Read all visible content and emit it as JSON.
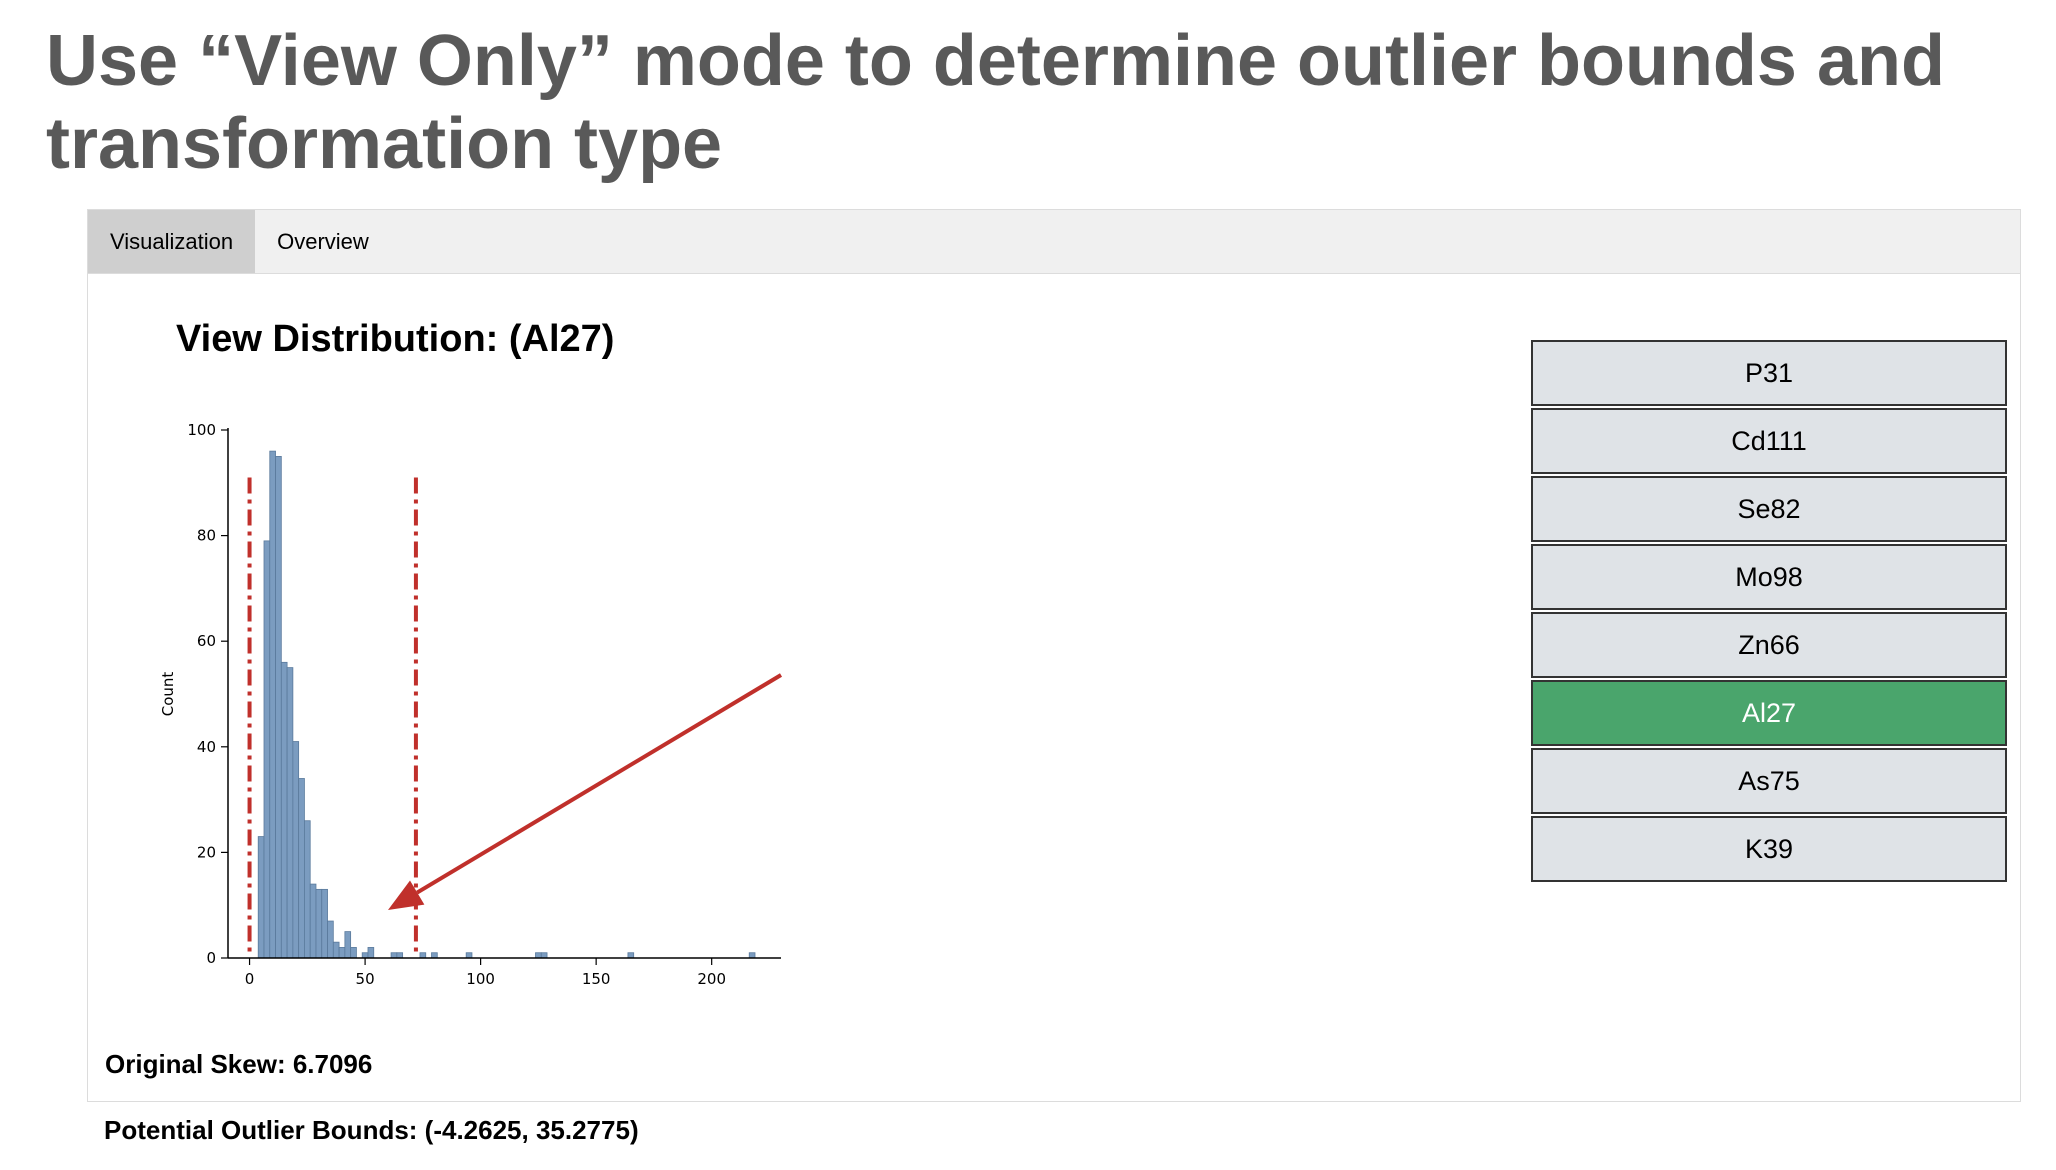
{
  "slide": {
    "title": "Use “View Only” mode to determine outlier bounds and transformation type"
  },
  "tabs": [
    {
      "label": "Visualization",
      "active": true
    },
    {
      "label": "Overview",
      "active": false
    }
  ],
  "chart_title": "View Distribution: (Al27)",
  "chart_data": {
    "type": "bar",
    "title": "View Distribution: (Al27)",
    "xlabel": "",
    "ylabel": "Count",
    "xlim": [
      -5,
      230
    ],
    "ylim": [
      0,
      100
    ],
    "x_ticks": [
      0,
      50,
      100,
      150,
      200
    ],
    "y_ticks": [
      0,
      20,
      40,
      60,
      80,
      100
    ],
    "bin_width": 2.5,
    "bins": [
      {
        "x": 5,
        "count": 23
      },
      {
        "x": 7.5,
        "count": 79
      },
      {
        "x": 10,
        "count": 96
      },
      {
        "x": 12.5,
        "count": 95
      },
      {
        "x": 15,
        "count": 56
      },
      {
        "x": 17.5,
        "count": 55
      },
      {
        "x": 20,
        "count": 41
      },
      {
        "x": 22.5,
        "count": 34
      },
      {
        "x": 25,
        "count": 26
      },
      {
        "x": 27.5,
        "count": 14
      },
      {
        "x": 30,
        "count": 13
      },
      {
        "x": 32.5,
        "count": 13
      },
      {
        "x": 35,
        "count": 7
      },
      {
        "x": 37.5,
        "count": 3
      },
      {
        "x": 40,
        "count": 2
      },
      {
        "x": 42.5,
        "count": 5
      },
      {
        "x": 45,
        "count": 2
      },
      {
        "x": 50,
        "count": 1
      },
      {
        "x": 52.5,
        "count": 2
      },
      {
        "x": 62.5,
        "count": 1
      },
      {
        "x": 65,
        "count": 1
      },
      {
        "x": 75,
        "count": 1
      },
      {
        "x": 80,
        "count": 1
      },
      {
        "x": 95,
        "count": 1
      },
      {
        "x": 125,
        "count": 1
      },
      {
        "x": 127.5,
        "count": 1
      },
      {
        "x": 165,
        "count": 1
      },
      {
        "x": 217.5,
        "count": 1
      }
    ],
    "bounds_lines": [
      0,
      72
    ],
    "grid": false,
    "colors": {
      "bar": "#7b9cc0",
      "bar_edge": "#5a7a9c",
      "bound_line": "#c0302b",
      "arrow": "#c0302b"
    }
  },
  "elements": [
    {
      "label": "P31",
      "selected": false
    },
    {
      "label": "Cd111",
      "selected": false
    },
    {
      "label": "Se82",
      "selected": false
    },
    {
      "label": "Mo98",
      "selected": false
    },
    {
      "label": "Zn66",
      "selected": false
    },
    {
      "label": "Al27",
      "selected": true
    },
    {
      "label": "As75",
      "selected": false
    },
    {
      "label": "K39",
      "selected": false
    }
  ],
  "stats": {
    "skew": "Original Skew: 6.7096",
    "bounds": "Potential Outlier Bounds: (-4.2625, 35.2775)"
  }
}
